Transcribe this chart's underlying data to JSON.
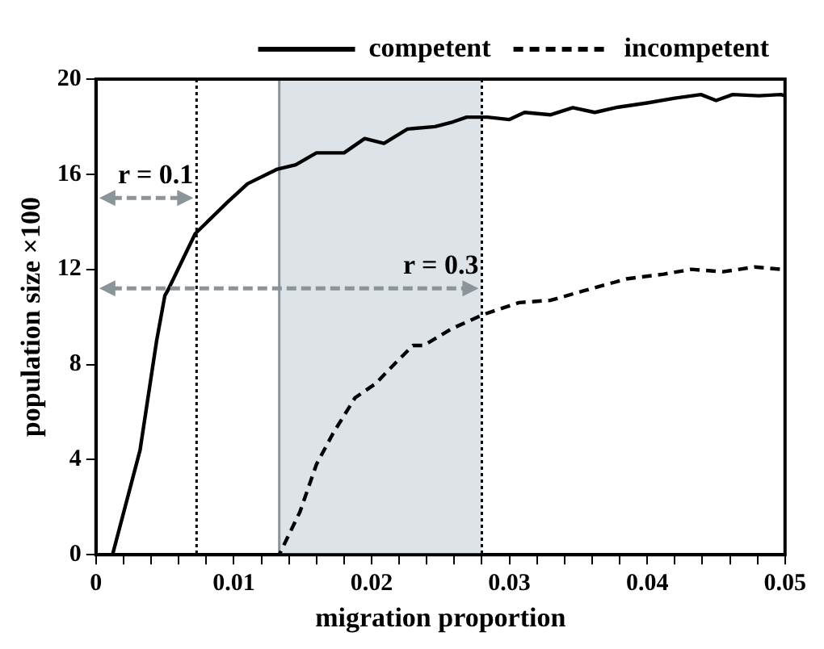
{
  "chart_data": {
    "type": "line",
    "xlabel": "migration proportion",
    "ylabel": "population size ×100",
    "xlim": [
      0,
      0.05
    ],
    "ylim": [
      0,
      20
    ],
    "xticks": [
      0,
      {
        "value": 0.002,
        "label": null
      },
      {
        "value": 0.004,
        "label": null
      },
      {
        "value": 0.006,
        "label": null
      },
      {
        "value": 0.008,
        "label": null
      },
      0.01,
      {
        "value": 0.012,
        "label": null
      },
      {
        "value": 0.014,
        "label": null
      },
      {
        "value": 0.016,
        "label": null
      },
      {
        "value": 0.018,
        "label": null
      },
      0.02,
      {
        "value": 0.022,
        "label": null
      },
      {
        "value": 0.024,
        "label": null
      },
      {
        "value": 0.026,
        "label": null
      },
      {
        "value": 0.028,
        "label": null
      },
      0.03,
      {
        "value": 0.032,
        "label": null
      },
      {
        "value": 0.034,
        "label": null
      },
      {
        "value": 0.036,
        "label": null
      },
      {
        "value": 0.038,
        "label": null
      },
      0.04,
      {
        "value": 0.042,
        "label": null
      },
      {
        "value": 0.044,
        "label": null
      },
      {
        "value": 0.046,
        "label": null
      },
      {
        "value": 0.048,
        "label": null
      },
      0.05
    ],
    "yticks": [
      0,
      4,
      8,
      12,
      16,
      20
    ],
    "grid": false,
    "legend": "top",
    "marker": "none",
    "series": [
      {
        "name": "competent",
        "color": "#000000",
        "line_style": "solid",
        "x": [
          0,
          0.0012,
          0.0032,
          0.0044,
          0.005,
          0.0052,
          0.0072,
          0.0095,
          0.011,
          0.0131,
          0.0145,
          0.016,
          0.018,
          0.0195,
          0.0209,
          0.0226,
          0.0246,
          0.0259,
          0.0269,
          0.0284,
          0.03,
          0.0311,
          0.033,
          0.0346,
          0.0362,
          0.0377,
          0.04,
          0.042,
          0.0439,
          0.045,
          0.0462,
          0.0481,
          0.0497,
          0.05
        ],
        "values": [
          0,
          0,
          4.4,
          9.0,
          10.9,
          11.1,
          13.5,
          14.8,
          15.6,
          16.2,
          16.4,
          16.9,
          16.9,
          17.5,
          17.3,
          17.9,
          18.0,
          18.2,
          18.4,
          18.4,
          18.3,
          18.6,
          18.5,
          18.8,
          18.6,
          18.8,
          19.0,
          19.2,
          19.35,
          19.1,
          19.35,
          19.3,
          19.35,
          19.3
        ]
      },
      {
        "name": "incompetent",
        "color": "#000000",
        "line_style": "dashed",
        "x": [
          0,
          0.0133,
          0.0148,
          0.016,
          0.0172,
          0.0188,
          0.0203,
          0.0218,
          0.023,
          0.0238,
          0.0258,
          0.0281,
          0.0307,
          0.033,
          0.0354,
          0.0385,
          0.0412,
          0.0432,
          0.0455,
          0.0478,
          0.0497,
          0.05
        ],
        "values": [
          0,
          0,
          1.8,
          3.8,
          5.1,
          6.6,
          7.2,
          8.1,
          8.8,
          8.8,
          9.5,
          10.1,
          10.6,
          10.7,
          11.1,
          11.6,
          11.8,
          12.0,
          11.9,
          12.1,
          12.0,
          12.1
        ]
      }
    ],
    "bands": [
      {
        "axis": "x",
        "from": 0.0133,
        "to": 0.028,
        "color": "#dde3e6"
      }
    ],
    "ref_lines": [
      {
        "axis": "x",
        "value": 0.0073,
        "color": "#000000",
        "line_style": "dotted"
      },
      {
        "axis": "x",
        "value": 0.0133,
        "color": "#8a9499",
        "line_style": "solid"
      },
      {
        "axis": "x",
        "value": 0.028,
        "color": "#000000",
        "line_style": "dotted"
      }
    ],
    "annotations": [
      {
        "text": "r = 0.1",
        "x": 0.0073,
        "y": 15
      },
      {
        "text": "r = 0.3",
        "x": 0.028,
        "y": 11.2
      }
    ]
  }
}
